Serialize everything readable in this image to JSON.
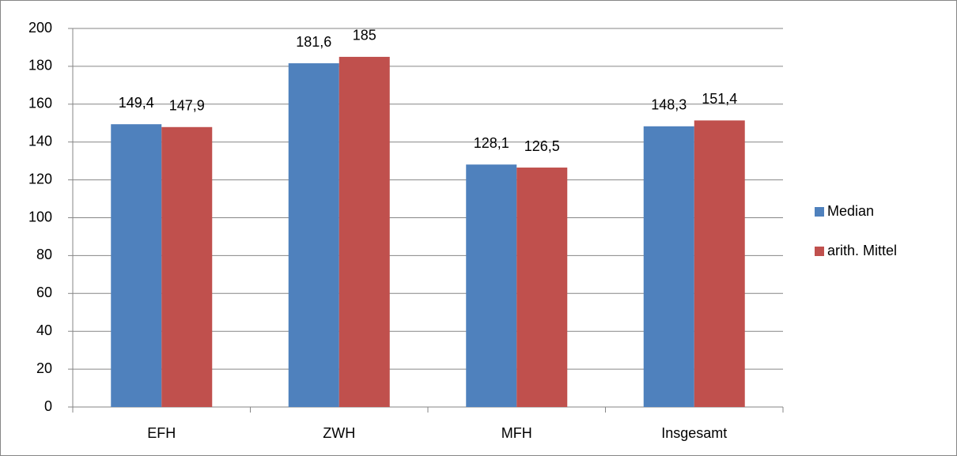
{
  "chart_data": {
    "type": "bar",
    "categories": [
      "EFH",
      "ZWH",
      "MFH",
      "Insgesamt"
    ],
    "series": [
      {
        "name": "Median",
        "color": "#4f81bd",
        "values": [
          149.4,
          181.6,
          128.1,
          148.3
        ],
        "value_labels": [
          "149,4",
          "181,6",
          "128,1",
          "148,3"
        ]
      },
      {
        "name": "arith. Mittel",
        "color": "#c0504d",
        "values": [
          147.9,
          185,
          126.5,
          151.4
        ],
        "value_labels": [
          "147,9",
          "185",
          "126,5",
          "151,4"
        ]
      }
    ],
    "ylim": [
      0,
      200
    ],
    "yticks": [
      0,
      20,
      40,
      60,
      80,
      100,
      120,
      140,
      160,
      180,
      200
    ],
    "grid": true,
    "legend": "right"
  }
}
